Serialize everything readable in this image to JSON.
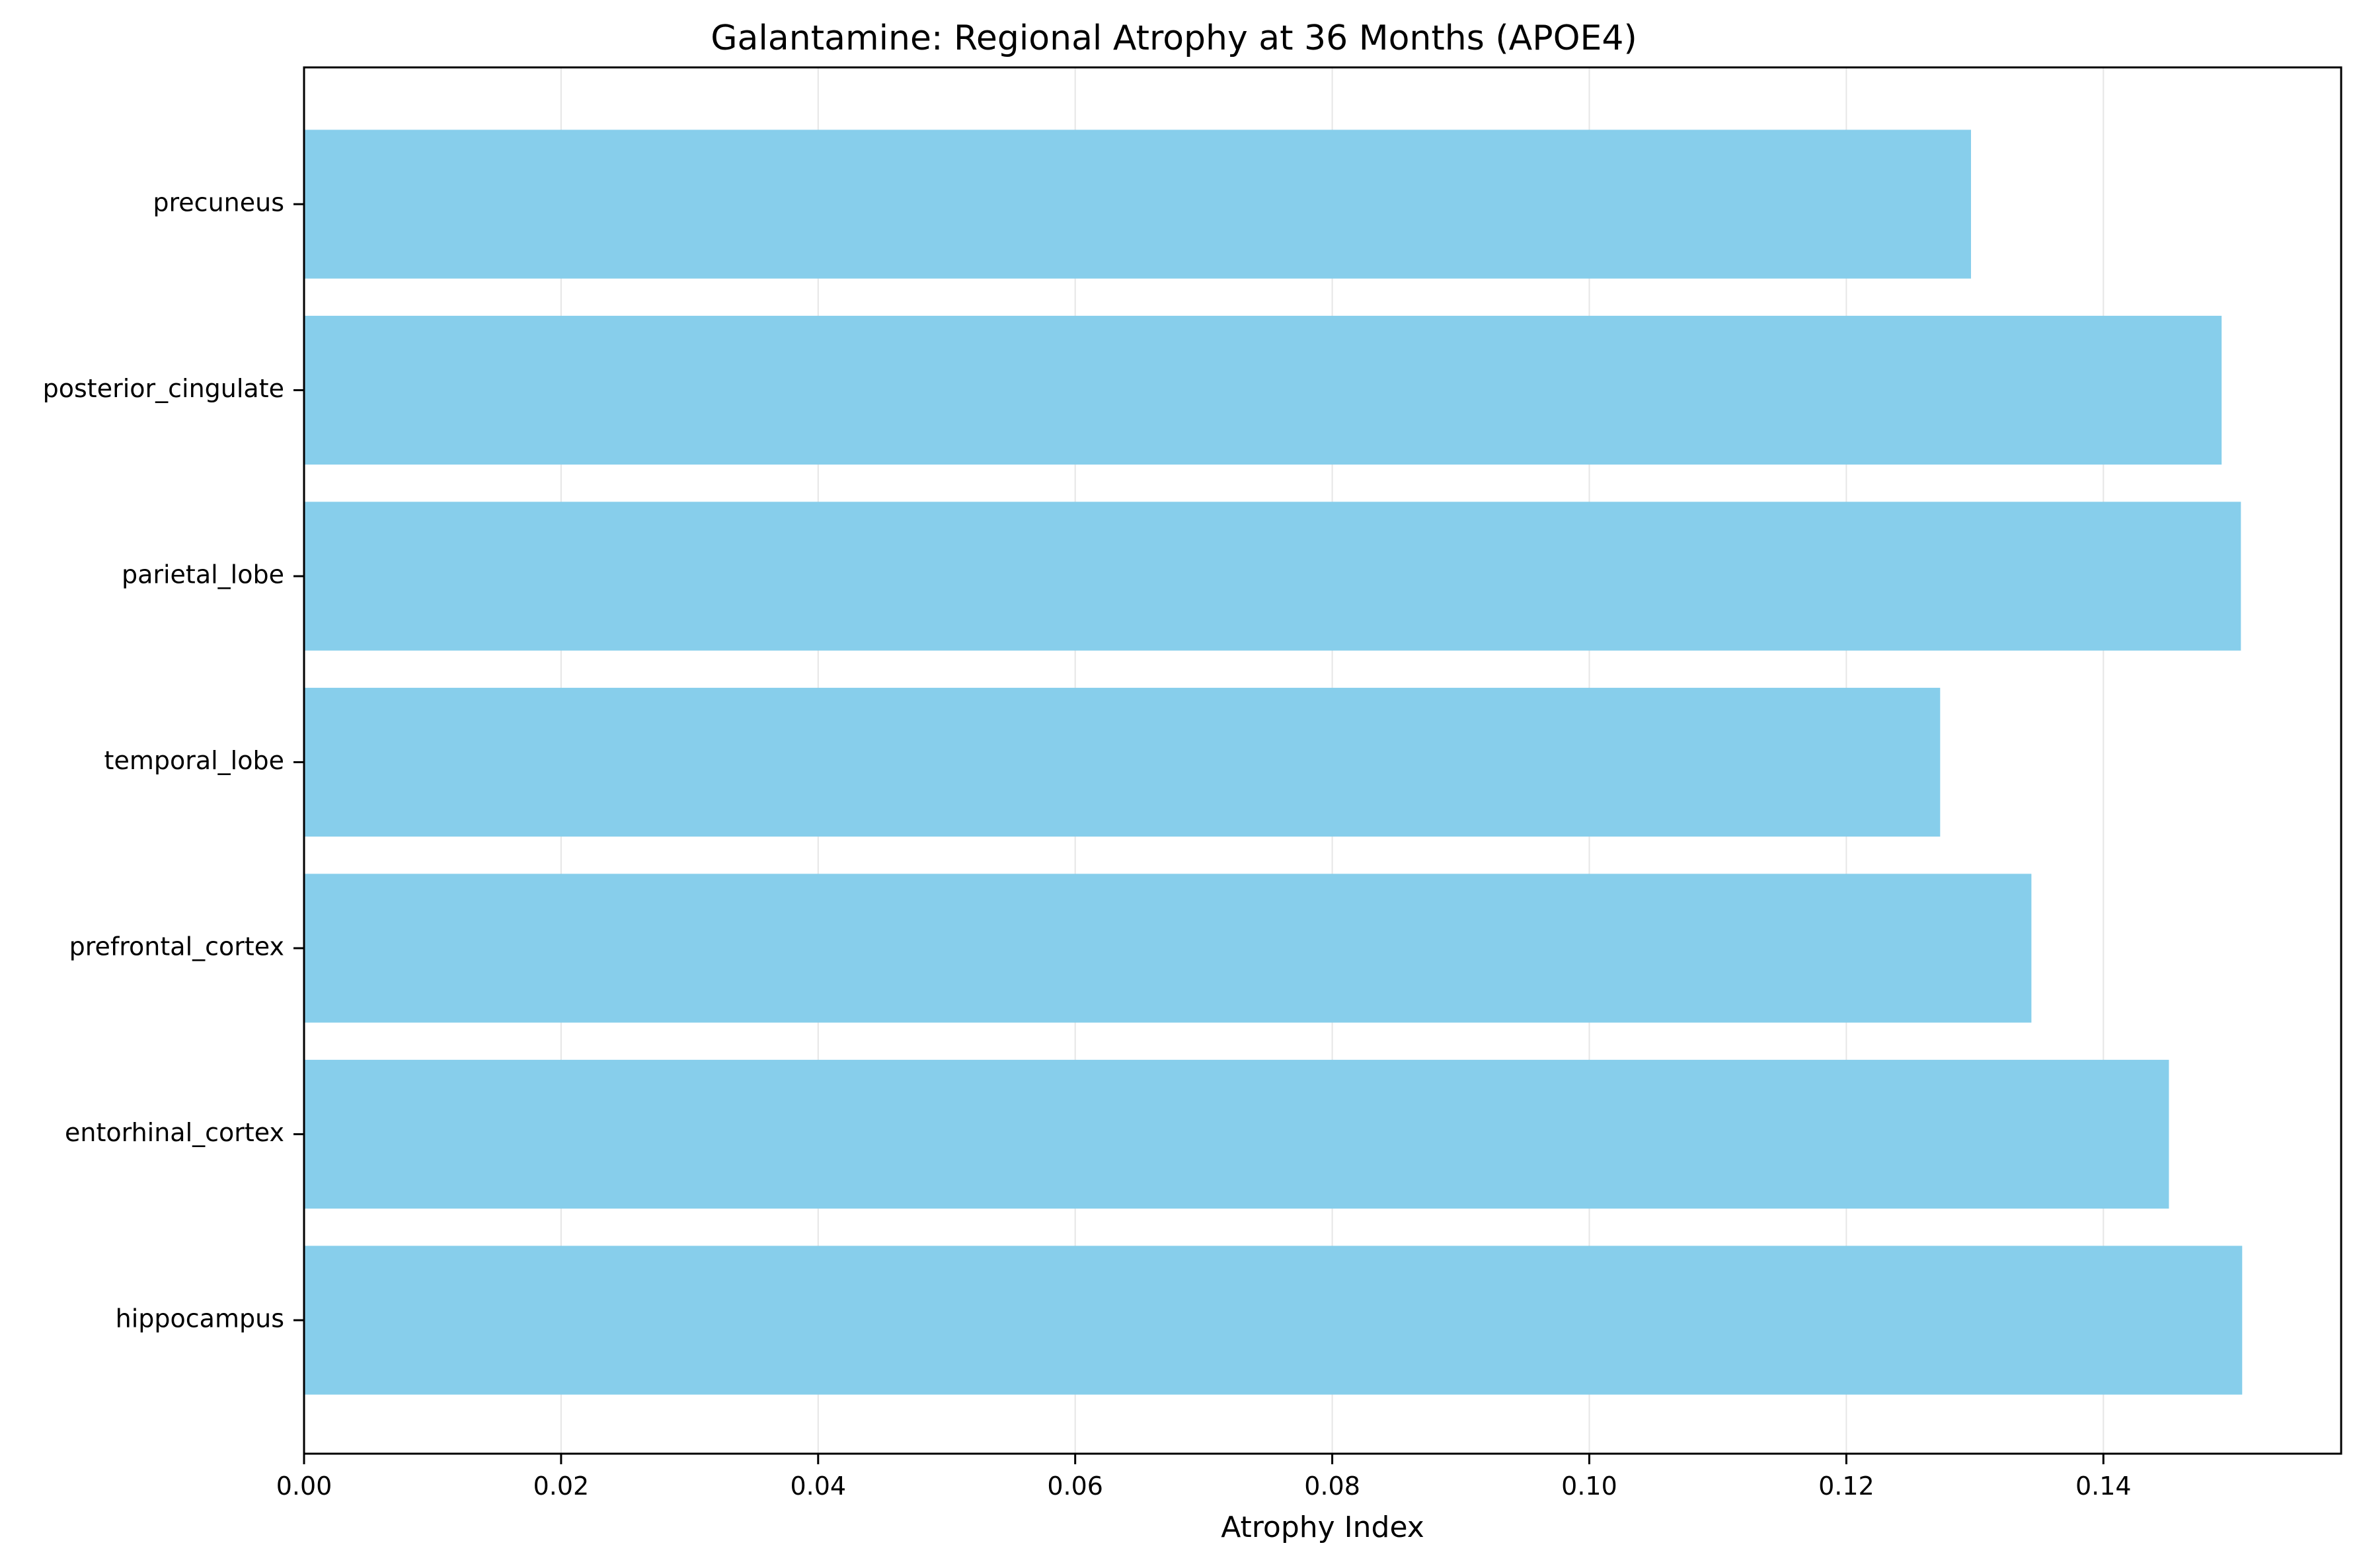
{
  "chart_data": {
    "type": "bar",
    "orientation": "horizontal",
    "title": "Galantamine: Regional Atrophy at 36 Months (APOE4)",
    "xlabel": "Atrophy Index",
    "ylabel": "",
    "categories": [
      "hippocampus",
      "entorhinal_cortex",
      "prefrontal_cortex",
      "temporal_lobe",
      "parietal_lobe",
      "posterior_cingulate",
      "precuneus"
    ],
    "values": [
      0.1508,
      0.1451,
      0.1344,
      0.1273,
      0.1507,
      0.1492,
      0.1297
    ],
    "xlim": [
      0,
      0.1585
    ],
    "xticks": [
      0.0,
      0.02,
      0.04,
      0.06,
      0.08,
      0.1,
      0.12,
      0.14
    ],
    "xtick_labels": [
      "0.00",
      "0.02",
      "0.04",
      "0.06",
      "0.08",
      "0.10",
      "0.12",
      "0.14"
    ],
    "grid": "vertical",
    "legend": "none",
    "colors": {
      "bar": "#87ceeb",
      "grid": "#e6e6e6",
      "axis": "#000000"
    }
  }
}
